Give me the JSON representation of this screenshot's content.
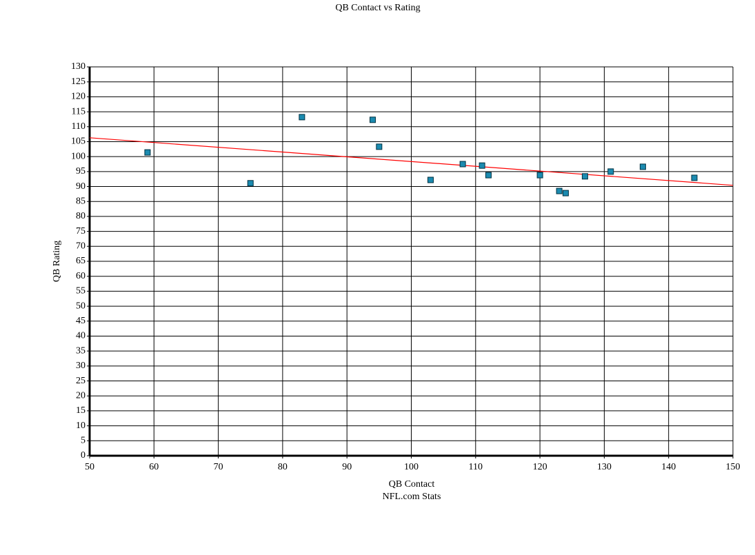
{
  "chart_data": {
    "type": "scatter",
    "title": "QB Contact vs Rating",
    "x_label": "QB Contact",
    "subtitle": "NFL.com Stats",
    "y_label": "QB Rating",
    "series": [
      {
        "name": "QB",
        "color": "#1c8bb0",
        "x": [
          59,
          75,
          83,
          94,
          95,
          103,
          108,
          111,
          112,
          120,
          123,
          124,
          127,
          131,
          136,
          144
        ],
        "values": [
          101.4,
          91.1,
          113.2,
          112.3,
          103.3,
          92.2,
          97.5,
          97.0,
          93.8,
          93.8,
          88.5,
          87.8,
          93.4,
          95.0,
          96.6,
          92.9
        ]
      }
    ],
    "trendline": {
      "color": "#ff0000",
      "x": [
        50,
        150
      ],
      "values": [
        106.3,
        90.4
      ]
    },
    "xlim": [
      50,
      150
    ],
    "xticks": [
      50,
      60,
      70,
      80,
      90,
      100,
      110,
      120,
      130,
      140,
      150
    ],
    "ylim": [
      0,
      130
    ],
    "yticks": [
      0,
      5,
      10,
      15,
      20,
      25,
      30,
      35,
      40,
      45,
      50,
      55,
      60,
      65,
      70,
      75,
      80,
      85,
      90,
      95,
      100,
      105,
      110,
      115,
      120,
      125,
      130
    ],
    "grid": true
  }
}
